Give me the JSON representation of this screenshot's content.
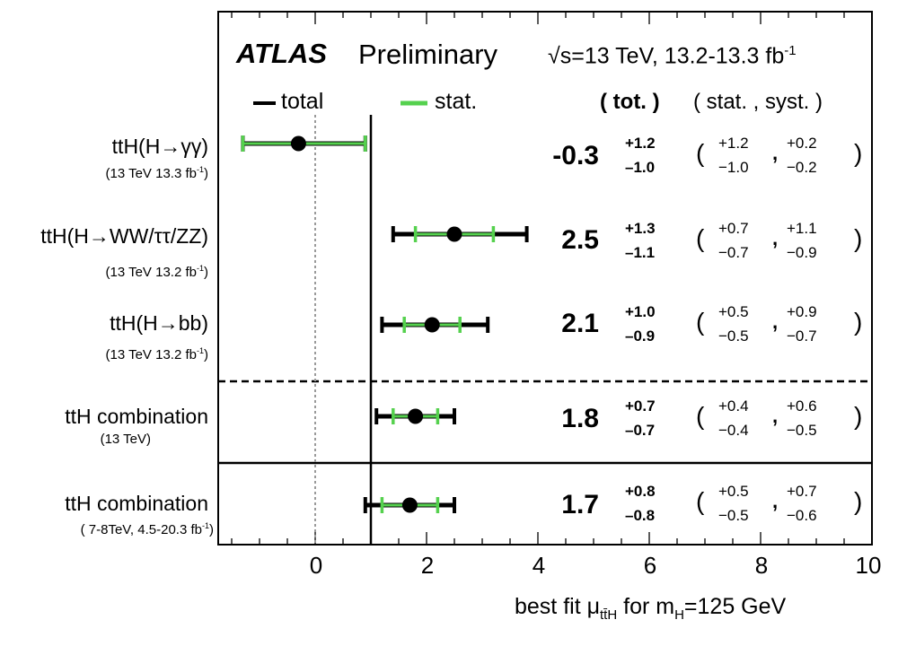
{
  "header": {
    "experiment": "ATLAS",
    "status": "Preliminary",
    "energy": "√s=13 TeV, 13.2-13.3 fb",
    "energy_exp": "-1"
  },
  "legend": {
    "total": "total",
    "stat": "stat.",
    "col_tot": "( tot. )",
    "col_stat_syst": "( stat. , syst. )"
  },
  "colors": {
    "total": "#000000",
    "stat": "#55d14e",
    "marker": "#000000",
    "sm_line": "#000000",
    "zero_line": "#9a9a9a"
  },
  "axis": {
    "xlabel_pre": "best fit μ",
    "xlabel_sub": "tt̄H",
    "xlabel_post": " for m",
    "xlabel_sub2": "H",
    "xlabel_tail": "=125 GeV",
    "tick_labels": [
      "0",
      "2",
      "4",
      "6",
      "8",
      "10"
    ]
  },
  "chart_data": {
    "type": "scatter",
    "title": "ATLAS Preliminary",
    "xlabel": "best fit μ_tt̄H for m_H=125 GeV",
    "xlim": [
      -1.9,
      10
    ],
    "xticks": [
      0,
      2,
      4,
      6,
      8,
      10
    ],
    "sm_reference": 1,
    "grid": false,
    "legend_position": "top",
    "series": [
      {
        "name": "total"
      },
      {
        "name": "stat."
      }
    ],
    "entries": [
      {
        "label": "ttH(H→γγ)",
        "sublabel": "(13 TeV 13.3 fb",
        "sub_exp": "-1",
        "sub_tail": ")",
        "value": -0.3,
        "value_text": "-0.3",
        "tot_up": 1.2,
        "tot_dn": 1.0,
        "tot_up_text": "+1.2",
        "tot_dn_text": "–1.0",
        "stat_up": 1.2,
        "stat_dn": 1.0,
        "stat_up_text": "+1.2",
        "stat_dn_text": "−1.0",
        "syst_up": 0.2,
        "syst_dn": 0.2,
        "syst_up_text": "+0.2",
        "syst_dn_text": "−0.2"
      },
      {
        "label": "ttH(H→WW/ττ/ZZ)",
        "sublabel": "(13 TeV 13.2 fb",
        "sub_exp": "-1",
        "sub_tail": ")",
        "value": 2.5,
        "value_text": "2.5",
        "tot_up": 1.3,
        "tot_dn": 1.1,
        "tot_up_text": "+1.3",
        "tot_dn_text": "–1.1",
        "stat_up": 0.7,
        "stat_dn": 0.7,
        "stat_up_text": "+0.7",
        "stat_dn_text": "−0.7",
        "syst_up": 1.1,
        "syst_dn": 0.9,
        "syst_up_text": "+1.1",
        "syst_dn_text": "−0.9"
      },
      {
        "label": "ttH(H→bb)",
        "sublabel": "(13 TeV 13.2 fb",
        "sub_exp": "-1",
        "sub_tail": ")",
        "value": 2.1,
        "value_text": "2.1",
        "tot_up": 1.0,
        "tot_dn": 0.9,
        "tot_up_text": "+1.0",
        "tot_dn_text": "–0.9",
        "stat_up": 0.5,
        "stat_dn": 0.5,
        "stat_up_text": "+0.5",
        "stat_dn_text": "−0.5",
        "syst_up": 0.9,
        "syst_dn": 0.7,
        "syst_up_text": "+0.9",
        "syst_dn_text": "−0.7"
      },
      {
        "label": "ttH combination",
        "sublabel": "(13 TeV)",
        "sub_exp": "",
        "sub_tail": "",
        "value": 1.8,
        "value_text": "1.8",
        "tot_up": 0.7,
        "tot_dn": 0.7,
        "tot_up_text": "+0.7",
        "tot_dn_text": "–0.7",
        "stat_up": 0.4,
        "stat_dn": 0.4,
        "stat_up_text": "+0.4",
        "stat_dn_text": "−0.4",
        "syst_up": 0.6,
        "syst_dn": 0.5,
        "syst_up_text": "+0.6",
        "syst_dn_text": "−0.5"
      },
      {
        "label": "ttH combination",
        "sublabel": "( 7-8TeV, 4.5-20.3 fb",
        "sub_exp": "-1",
        "sub_tail": ")",
        "value": 1.7,
        "value_text": "1.7",
        "tot_up": 0.8,
        "tot_dn": 0.8,
        "tot_up_text": "+0.8",
        "tot_dn_text": "–0.8",
        "stat_up": 0.5,
        "stat_dn": 0.5,
        "stat_up_text": "+0.5",
        "stat_dn_text": "−0.5",
        "syst_up": 0.7,
        "syst_dn": 0.6,
        "syst_up_text": "+0.7",
        "syst_dn_text": "−0.6"
      }
    ]
  }
}
